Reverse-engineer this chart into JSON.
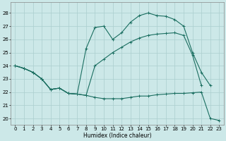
{
  "xlabel": "Humidex (Indice chaleur)",
  "xlim": [
    -0.5,
    23.5
  ],
  "ylim": [
    19.5,
    28.8
  ],
  "yticks": [
    20,
    21,
    22,
    23,
    24,
    25,
    26,
    27,
    28
  ],
  "xticks": [
    0,
    1,
    2,
    3,
    4,
    5,
    6,
    7,
    8,
    9,
    10,
    11,
    12,
    13,
    14,
    15,
    16,
    17,
    18,
    19,
    20,
    21,
    22,
    23
  ],
  "bg_color": "#cce8e8",
  "grid_color": "#aacece",
  "line_color": "#1a6e60",
  "line1_x": [
    0,
    1,
    2,
    3,
    4,
    5,
    6,
    7,
    8,
    9,
    10,
    11,
    12,
    13,
    14,
    15,
    16,
    17,
    18,
    19,
    20,
    21,
    22,
    23
  ],
  "line1_y": [
    24.0,
    23.8,
    23.5,
    23.0,
    22.2,
    22.3,
    21.9,
    21.85,
    21.75,
    21.6,
    21.5,
    21.5,
    21.5,
    21.6,
    21.7,
    21.7,
    21.8,
    21.85,
    21.9,
    21.9,
    21.95,
    22.0,
    20.0,
    19.85
  ],
  "line2_x": [
    0,
    1,
    2,
    3,
    4,
    5,
    6,
    7,
    8,
    9,
    10,
    11,
    12,
    13,
    14,
    15,
    16,
    17,
    18,
    19,
    20,
    21,
    22
  ],
  "line2_y": [
    24.0,
    23.8,
    23.5,
    23.0,
    22.2,
    22.3,
    21.9,
    21.85,
    25.3,
    26.9,
    27.0,
    26.0,
    26.5,
    27.3,
    27.8,
    28.0,
    27.8,
    27.75,
    27.5,
    27.0,
    25.0,
    23.5,
    22.5
  ],
  "line3_x": [
    0,
    1,
    2,
    3,
    4,
    5,
    6,
    7,
    8,
    9,
    10,
    11,
    12,
    13,
    14,
    15,
    16,
    17,
    18,
    19,
    20,
    21
  ],
  "line3_y": [
    24.0,
    23.8,
    23.5,
    23.0,
    22.2,
    22.3,
    21.9,
    21.85,
    21.75,
    24.0,
    24.5,
    25.0,
    25.4,
    25.8,
    26.1,
    26.3,
    26.4,
    26.45,
    26.5,
    26.3,
    24.8,
    22.5
  ]
}
